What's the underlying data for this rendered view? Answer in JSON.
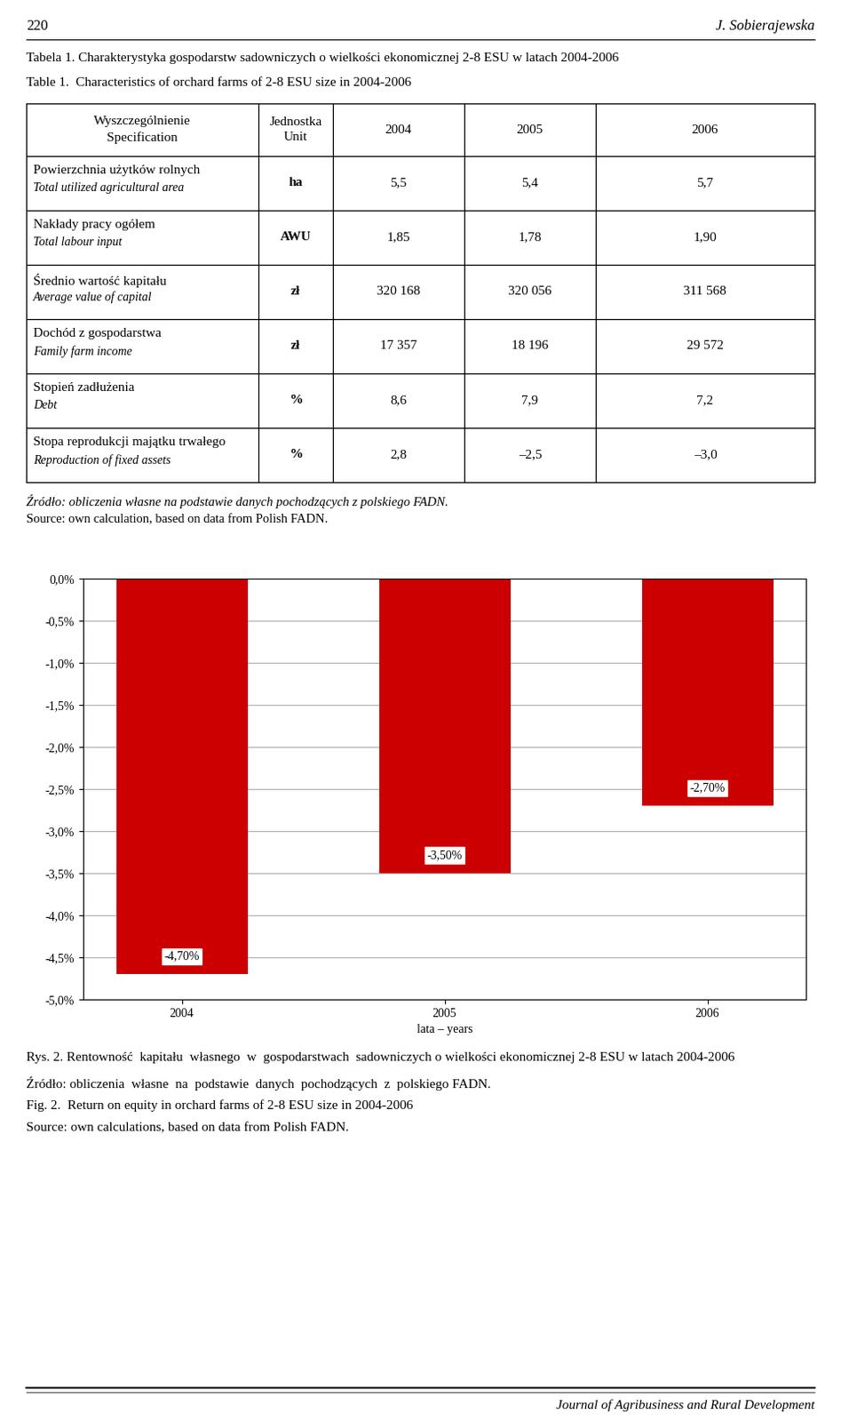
{
  "page": {
    "number": "220",
    "author": "J. Sobierajewska",
    "journal": "Journal of Agribusiness and Rural Development"
  },
  "chart_data": [
    {
      "type": "table",
      "title": "Tabela 1. Charakterystyka gospodarstw sadowniczych o wielkości ekonomicznej 2-8 ESU w latach 2004-2006",
      "subtitle": "Table 1.  Characteristics of orchard farms of 2-8 ESU size in 2004-2006",
      "columns": [
        [
          "Wyszczególnienie",
          "Specification"
        ],
        [
          "Jednostka",
          "Unit"
        ],
        [
          "2004"
        ],
        [
          "2005"
        ],
        [
          "2006"
        ]
      ],
      "rows": [
        {
          "label": [
            "Powierzchnia użytków rolnych",
            "Total utilized agricultural area"
          ],
          "unit": "ha",
          "values": [
            "5,5",
            "5,4",
            "5,7"
          ]
        },
        {
          "label": [
            "Nakłady pracy ogółem",
            "Total labour input"
          ],
          "unit": "AWU",
          "values": [
            "1,85",
            "1,78",
            "1,90"
          ]
        },
        {
          "label": [
            "Średnio wartość kapitału",
            "Average value of capital"
          ],
          "unit": "zł",
          "values": [
            "320 168",
            "320 056",
            "311 568"
          ]
        },
        {
          "label": [
            "Dochód z gospodarstwa",
            "Family farm income"
          ],
          "unit": "zł",
          "values": [
            "17 357",
            "18 196",
            "29 572"
          ]
        },
        {
          "label": [
            "Stopień zadłużenia",
            "Debt"
          ],
          "unit": "%",
          "values": [
            "8,6",
            "7,9",
            "7,2"
          ]
        },
        {
          "label": [
            "Stopa reprodukcji majątku trwałego",
            "Reproduction of fixed assets"
          ],
          "unit": "%",
          "values": [
            "2,8",
            "–2,5",
            "–3,0"
          ]
        }
      ],
      "annotations": [
        "Źródło: obliczenia własne na podstawie danych pochodzących z polskiego FADN.",
        "Source: own calculation, based on data from Polish FADN."
      ]
    },
    {
      "type": "bar",
      "title": "Rys. 2. Rentowność  kapitału  własnego  w  gospodarstwach  sadowniczych o wielkości ekonomicznej 2-8 ESU w latach 2004-2006",
      "annotations": [
        "Źródło: obliczenia  własne  na  podstawie  danych  pochodzących  z  polskiego FADN.",
        "Fig. 2.  Return on equity in orchard farms of 2-8 ESU size in 2004-2006",
        "Source: own calculations, based on data from Polish FADN."
      ],
      "categories": [
        "2004",
        "2005",
        "2006"
      ],
      "values": [
        -4.7,
        -3.5,
        -2.7
      ],
      "value_labels": [
        "-4,70%",
        "-3,50%",
        "-2,70%"
      ],
      "data_labels": true,
      "color": "#cc0000",
      "x_label": "lata – years",
      "ylim": [
        -5.0,
        0.0
      ],
      "yticks": [
        {
          "value": 0.0,
          "label": "0,0%"
        },
        {
          "value": -0.5,
          "label": "-0,5%"
        },
        {
          "value": -1.0,
          "label": "-1,0%"
        },
        {
          "value": -1.5,
          "label": "-1,5%"
        },
        {
          "value": -2.0,
          "label": "-2,0%"
        },
        {
          "value": -2.5,
          "label": "-2,5%"
        },
        {
          "value": -3.0,
          "label": "-3,0%"
        },
        {
          "value": -3.5,
          "label": "-3,5%"
        },
        {
          "value": -4.0,
          "label": "-4,0%"
        },
        {
          "value": -4.5,
          "label": "-4,5%"
        },
        {
          "value": -5.0,
          "label": "-5,0%"
        }
      ],
      "grid": "y"
    }
  ]
}
